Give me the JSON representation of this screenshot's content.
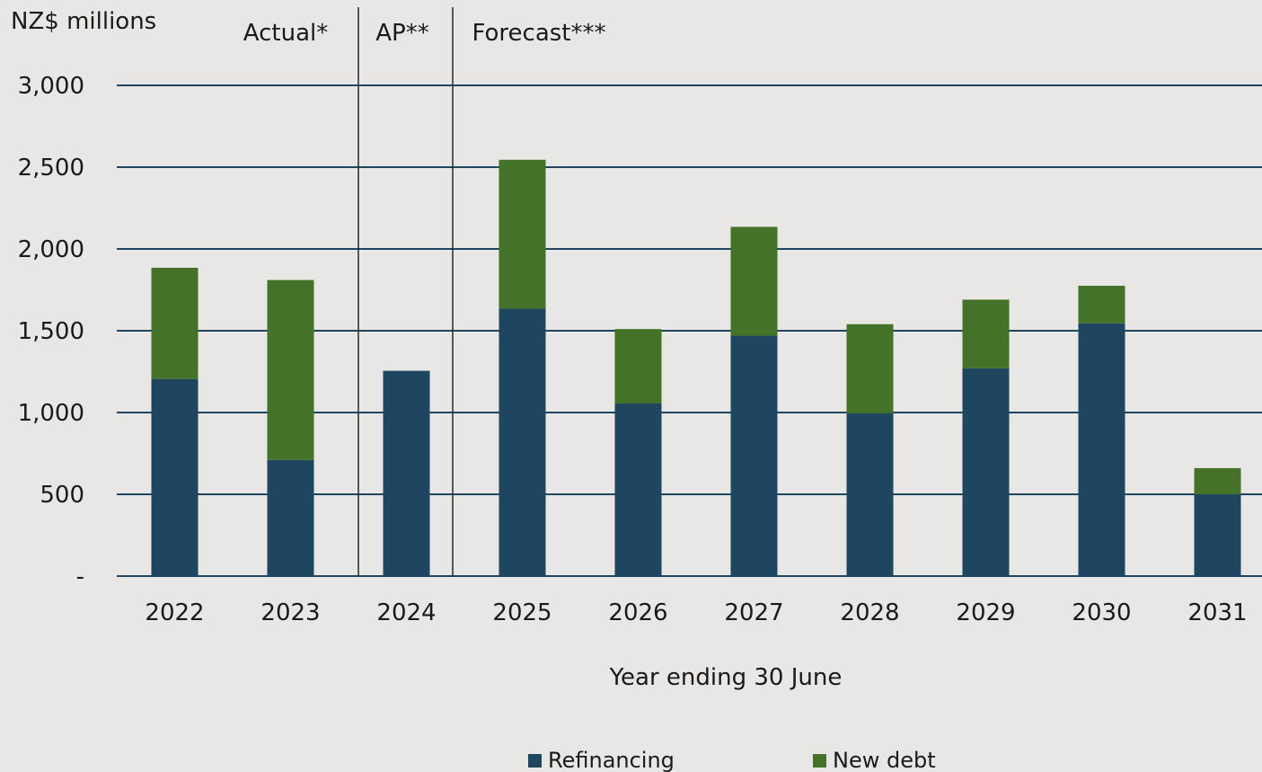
{
  "chart_data": {
    "type": "bar",
    "stacked": true,
    "ylabel": "NZ$ millions",
    "xlabel": "Year ending 30 June",
    "ylim": [
      0,
      3000
    ],
    "yticks": [
      0,
      500,
      1000,
      1500,
      2000,
      2500,
      3000
    ],
    "ytick_labels": [
      "-",
      "500",
      "1,000",
      "1,500",
      "2,000",
      "2,500",
      "3,000"
    ],
    "categories": [
      "2022",
      "2023",
      "2024",
      "2025",
      "2026",
      "2027",
      "2028",
      "2029",
      "2030",
      "2031"
    ],
    "series": [
      {
        "name": "Refinancing",
        "color": "#1f4661",
        "values": [
          1205,
          710,
          1255,
          1635,
          1055,
          1470,
          995,
          1270,
          1545,
          500
        ]
      },
      {
        "name": "New debt",
        "color": "#437228",
        "values": [
          680,
          1100,
          0,
          910,
          455,
          665,
          545,
          420,
          230,
          160
        ]
      }
    ],
    "regions": [
      {
        "label": "Actual*",
        "start_index": 0,
        "end_index": 1
      },
      {
        "label": "AP**",
        "start_index": 2,
        "end_index": 2
      },
      {
        "label": "Forecast***",
        "start_index": 3,
        "end_index": 9
      }
    ],
    "grid": true,
    "legend": "bottom-center"
  }
}
